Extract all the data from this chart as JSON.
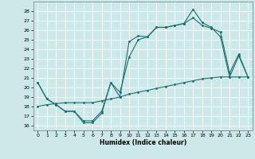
{
  "xlabel": "Humidex (Indice chaleur)",
  "bg_color": "#cce8e8",
  "grid_color": "#ffffff",
  "line_color": "#1a7070",
  "xlim": [
    -0.5,
    23.5
  ],
  "ylim": [
    15.5,
    29.0
  ],
  "yticks": [
    16,
    17,
    18,
    19,
    20,
    21,
    22,
    23,
    24,
    25,
    26,
    27,
    28
  ],
  "xticks": [
    0,
    1,
    2,
    3,
    4,
    5,
    6,
    7,
    8,
    9,
    10,
    11,
    12,
    13,
    14,
    15,
    16,
    17,
    18,
    19,
    20,
    21,
    22,
    23
  ],
  "line1_x": [
    0,
    1,
    2,
    3,
    4,
    5,
    6,
    7,
    8,
    9,
    10,
    11,
    12,
    13,
    14,
    15,
    16,
    17,
    18,
    19,
    20,
    21,
    22,
    23
  ],
  "line1_y": [
    20.5,
    18.8,
    18.2,
    17.5,
    17.5,
    16.3,
    16.3,
    17.3,
    20.5,
    19.0,
    24.8,
    25.4,
    25.3,
    26.3,
    26.3,
    26.5,
    26.7,
    28.2,
    26.8,
    26.3,
    25.3,
    21.1,
    23.3,
    21.1
  ],
  "line2_x": [
    0,
    1,
    2,
    3,
    4,
    5,
    6,
    7,
    8,
    9,
    10,
    11,
    12,
    13,
    14,
    15,
    16,
    17,
    18,
    19,
    20,
    21,
    22,
    23
  ],
  "line2_y": [
    20.5,
    18.8,
    18.2,
    17.5,
    17.5,
    16.5,
    16.5,
    17.5,
    20.5,
    19.5,
    23.2,
    25.0,
    25.3,
    26.3,
    26.3,
    26.5,
    26.7,
    27.3,
    26.5,
    26.2,
    25.8,
    21.5,
    23.5,
    21.1
  ],
  "line3_x": [
    0,
    1,
    2,
    3,
    4,
    5,
    6,
    7,
    8,
    9,
    10,
    11,
    12,
    13,
    14,
    15,
    16,
    17,
    18,
    19,
    20,
    21,
    22,
    23
  ],
  "line3_y": [
    18.0,
    18.2,
    18.3,
    18.4,
    18.4,
    18.4,
    18.4,
    18.6,
    18.8,
    19.0,
    19.3,
    19.5,
    19.7,
    19.9,
    20.1,
    20.3,
    20.5,
    20.7,
    20.9,
    21.0,
    21.1,
    21.1,
    21.1,
    21.1
  ]
}
